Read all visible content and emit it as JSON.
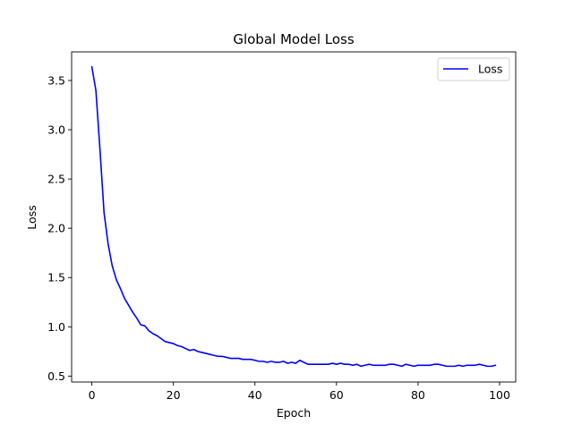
{
  "chart_data": {
    "type": "line",
    "title": "Global Model Loss",
    "xlabel": "Epoch",
    "ylabel": "Loss",
    "xlim": [
      -4.95,
      103.95
    ],
    "ylim": [
      0.44,
      3.79
    ],
    "xticks": [
      0,
      20,
      40,
      60,
      80,
      100
    ],
    "yticks": [
      0.5,
      1.0,
      1.5,
      2.0,
      2.5,
      3.0,
      3.5
    ],
    "xtick_labels": [
      "0",
      "20",
      "40",
      "60",
      "80",
      "100"
    ],
    "ytick_labels": [
      "0.5",
      "1.0",
      "1.5",
      "2.0",
      "2.5",
      "3.0",
      "3.5"
    ],
    "grid": false,
    "legend": {
      "position": "upper right",
      "entries": [
        "Loss"
      ]
    },
    "series": [
      {
        "name": "Loss",
        "color": "#0000ff",
        "x": [
          0,
          1,
          2,
          3,
          4,
          5,
          6,
          7,
          8,
          9,
          10,
          11,
          12,
          13,
          14,
          15,
          16,
          17,
          18,
          19,
          20,
          21,
          22,
          23,
          24,
          25,
          26,
          27,
          28,
          29,
          30,
          31,
          32,
          33,
          34,
          35,
          36,
          37,
          38,
          39,
          40,
          41,
          42,
          43,
          44,
          45,
          46,
          47,
          48,
          49,
          50,
          51,
          52,
          53,
          54,
          55,
          56,
          57,
          58,
          59,
          60,
          61,
          62,
          63,
          64,
          65,
          66,
          67,
          68,
          69,
          70,
          71,
          72,
          73,
          74,
          75,
          76,
          77,
          78,
          79,
          80,
          81,
          82,
          83,
          84,
          85,
          86,
          87,
          88,
          89,
          90,
          91,
          92,
          93,
          94,
          95,
          96,
          97,
          98,
          99
        ],
        "values": [
          3.64,
          3.4,
          2.8,
          2.16,
          1.84,
          1.62,
          1.48,
          1.39,
          1.29,
          1.22,
          1.15,
          1.09,
          1.02,
          1.01,
          0.96,
          0.93,
          0.91,
          0.88,
          0.85,
          0.84,
          0.83,
          0.81,
          0.8,
          0.78,
          0.76,
          0.77,
          0.75,
          0.74,
          0.73,
          0.72,
          0.71,
          0.7,
          0.7,
          0.69,
          0.68,
          0.68,
          0.68,
          0.67,
          0.67,
          0.67,
          0.66,
          0.65,
          0.65,
          0.64,
          0.65,
          0.64,
          0.64,
          0.65,
          0.63,
          0.64,
          0.63,
          0.66,
          0.64,
          0.62,
          0.62,
          0.62,
          0.62,
          0.62,
          0.62,
          0.63,
          0.62,
          0.63,
          0.62,
          0.62,
          0.61,
          0.62,
          0.6,
          0.61,
          0.62,
          0.61,
          0.61,
          0.61,
          0.61,
          0.62,
          0.62,
          0.61,
          0.6,
          0.62,
          0.61,
          0.6,
          0.61,
          0.61,
          0.61,
          0.61,
          0.62,
          0.62,
          0.61,
          0.6,
          0.6,
          0.6,
          0.61,
          0.6,
          0.61,
          0.61,
          0.61,
          0.62,
          0.61,
          0.6,
          0.6,
          0.61
        ]
      }
    ]
  }
}
